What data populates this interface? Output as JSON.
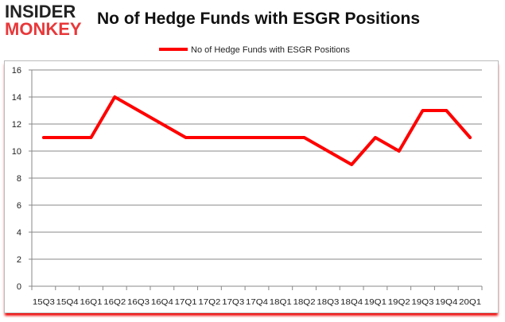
{
  "logo": {
    "line1": "INSIDER",
    "line2": "MONKEY"
  },
  "chart_data": {
    "type": "line",
    "title": "No of Hedge Funds with ESGR Positions",
    "xlabel": "",
    "ylabel": "",
    "categories": [
      "15Q3",
      "15Q4",
      "16Q1",
      "16Q2",
      "16Q3",
      "16Q4",
      "17Q1",
      "17Q2",
      "17Q3",
      "17Q4",
      "18Q1",
      "18Q2",
      "18Q3",
      "18Q4",
      "19Q1",
      "19Q2",
      "19Q3",
      "19Q4",
      "20Q1"
    ],
    "series": [
      {
        "name": "No of Hedge Funds with ESGR Positions",
        "color": "#ff0000",
        "values": [
          11,
          11,
          11,
          14,
          13,
          12,
          11,
          11,
          11,
          11,
          11,
          11,
          10,
          9,
          11,
          10,
          13,
          13,
          11
        ]
      }
    ],
    "ylim": [
      0,
      16
    ],
    "yticks": [
      0,
      2,
      4,
      6,
      8,
      10,
      12,
      14,
      16
    ],
    "grid": true,
    "legend": "top-center"
  }
}
